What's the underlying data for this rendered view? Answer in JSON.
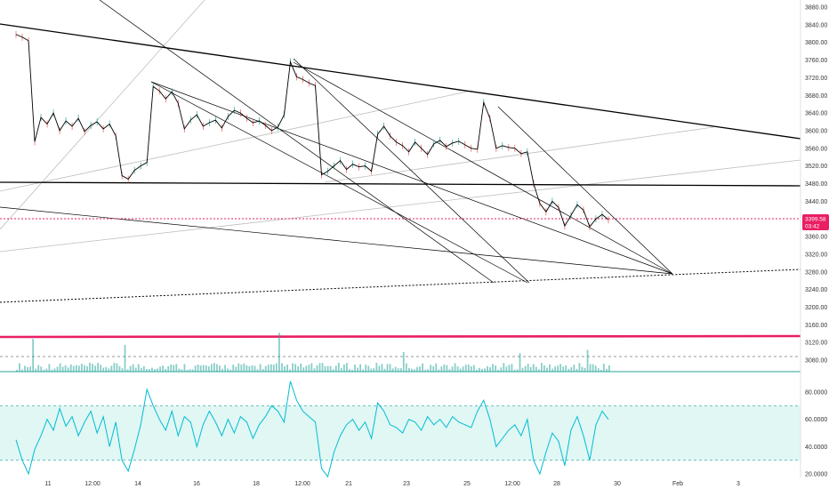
{
  "colors": {
    "background": "#ffffff",
    "candle_up": "#26a69a",
    "candle_down": "#ef5350",
    "price_line": "#000000",
    "trendline": "#000000",
    "thin_line": "#bdbdbd",
    "current_price_line": "#e91e63",
    "volume_bar": "#26a69a",
    "horizontal_pink": "#e91e63",
    "rsi_line": "#00bcd4",
    "rsi_band": "#e0f7f4",
    "rsi_border": "#26a69a",
    "axis_text": "#333333"
  },
  "price_axis": {
    "ticks": [
      "3880.00",
      "3840.00",
      "3800.00",
      "3760.00",
      "3720.00",
      "3680.00",
      "3640.00",
      "3600.00",
      "3560.00",
      "3520.00",
      "3480.00",
      "3440.00",
      "3400.00",
      "3360.00",
      "3320.00",
      "3280.00",
      "3240.00",
      "3200.00",
      "3160.00",
      "3120.00",
      "3080.00"
    ],
    "current_price": "3399.58",
    "countdown": "03:42"
  },
  "rsi_axis": {
    "ticks": [
      "80.0000",
      "60.0000",
      "40.0000",
      "20.0000"
    ]
  },
  "time_axis": {
    "labels": [
      "11",
      "12:00",
      "14",
      "16",
      "18",
      "12:00",
      "21",
      "23",
      "25",
      "12:00",
      "28",
      "30",
      "Feb",
      "3"
    ]
  },
  "chart_data": [
    {
      "type": "line",
      "title": "",
      "ylim": [
        3040,
        3900
      ],
      "series": [
        {
          "values": [
            3818,
            3812,
            3804,
            3575,
            3630,
            3615,
            3640,
            3600,
            3622,
            3610,
            3628,
            3598,
            3612,
            3620,
            3604,
            3615,
            3588,
            3498,
            3490,
            3510,
            3520,
            3528,
            3700,
            3690,
            3672,
            3688,
            3662,
            3604,
            3624,
            3636,
            3610,
            3618,
            3624,
            3606,
            3632,
            3646,
            3640,
            3628,
            3618,
            3622,
            3612,
            3600,
            3608,
            3636,
            3756,
            3722,
            3716,
            3708,
            3702,
            3500,
            3508,
            3520,
            3532,
            3512,
            3524,
            3518,
            3520,
            3508,
            3592,
            3610,
            3588,
            3574,
            3566,
            3552,
            3574,
            3560,
            3546,
            3570,
            3578,
            3564,
            3572,
            3576,
            3568,
            3560,
            3558,
            3664,
            3628,
            3560,
            3566,
            3562,
            3560,
            3548,
            3552,
            3480,
            3435,
            3416,
            3440,
            3426,
            3384,
            3408,
            3432,
            3420,
            3382,
            3400,
            3410,
            3398
          ]
        }
      ]
    },
    {
      "type": "line",
      "title": "",
      "ylim": [
        0,
        100
      ],
      "series": [
        {
          "values": [
            45,
            30,
            20,
            38,
            48,
            60,
            52,
            68,
            55,
            62,
            48,
            58,
            66,
            50,
            62,
            40,
            58,
            30,
            22,
            38,
            56,
            82,
            70,
            60,
            52,
            66,
            48,
            62,
            58,
            40,
            56,
            66,
            58,
            48,
            60,
            50,
            62,
            58,
            46,
            56,
            62,
            70,
            66,
            58,
            88,
            74,
            66,
            62,
            58,
            24,
            18,
            36,
            48,
            56,
            60,
            52,
            58,
            46,
            72,
            66,
            56,
            54,
            50,
            60,
            58,
            52,
            62,
            56,
            60,
            54,
            62,
            58,
            56,
            54,
            66,
            74,
            60,
            40,
            46,
            52,
            56,
            48,
            60,
            30,
            20,
            36,
            50,
            44,
            26,
            52,
            62,
            48,
            30,
            56,
            66,
            60
          ]
        }
      ]
    }
  ]
}
